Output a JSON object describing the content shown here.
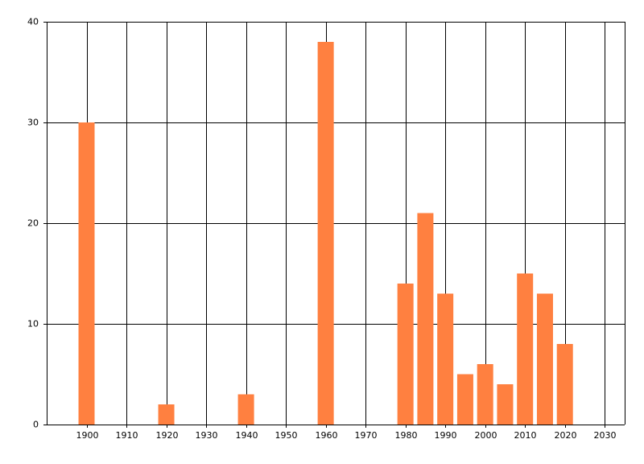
{
  "chart_data": {
    "type": "bar",
    "x": [
      1900,
      1920,
      1940,
      1960,
      1980,
      1985,
      1990,
      1995,
      2000,
      2005,
      2010,
      2015,
      2020
    ],
    "values": [
      30,
      2,
      3,
      38,
      14,
      21,
      13,
      5,
      6,
      4,
      15,
      13,
      8
    ],
    "color": "#ff8040",
    "xlim": [
      1890,
      2035
    ],
    "xticks": [
      1900,
      1910,
      1920,
      1930,
      1940,
      1950,
      1960,
      1970,
      1980,
      1990,
      2000,
      2010,
      2020,
      2030
    ],
    "ylim": [
      0,
      40
    ],
    "yticks": [
      0,
      10,
      20,
      30,
      40
    ],
    "grid": true
  }
}
